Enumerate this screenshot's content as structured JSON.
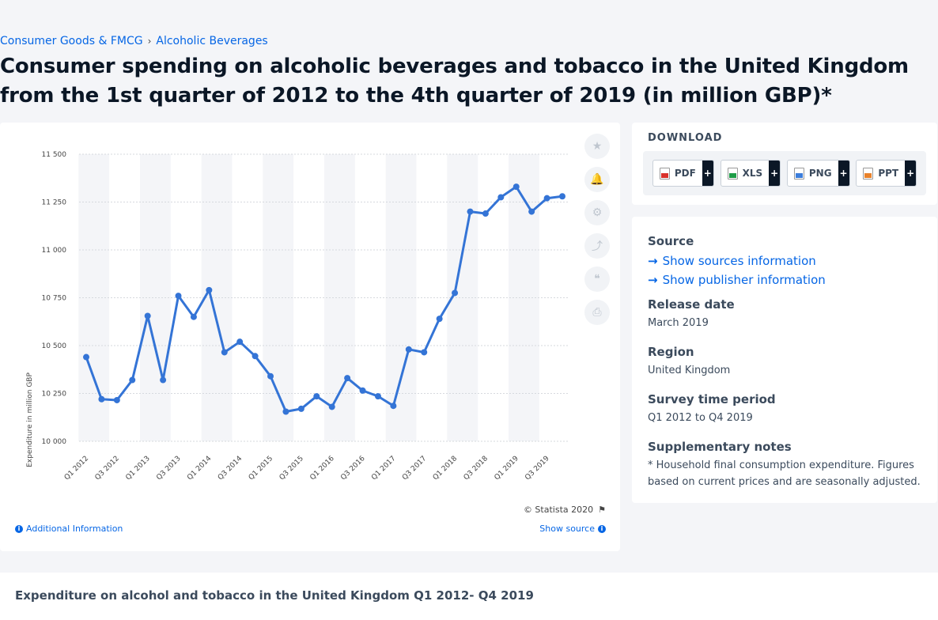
{
  "breadcrumb": {
    "item1": "Consumer Goods & FMCG",
    "item2": "Alcoholic Beverages",
    "sep": "›"
  },
  "page_title": "Consumer spending on alcoholic beverages and tobacco in the United Kingdom from the 1st quarter of 2012 to the 4th quarter of 2019 (in million GBP)*",
  "chart_footer": {
    "copyright": "© Statista 2020",
    "additional_info": "Additional Information",
    "show_source": "Show source"
  },
  "download": {
    "title": "DOWNLOAD",
    "buttons": [
      {
        "label": "PDF",
        "icon": "pdf-file-icon"
      },
      {
        "label": "XLS",
        "icon": "xls-file-icon"
      },
      {
        "label": "PNG",
        "icon": "png-file-icon"
      },
      {
        "label": "PPT",
        "icon": "ppt-file-icon"
      }
    ],
    "plus": "+"
  },
  "meta": {
    "source_h": "Source",
    "show_sources": "Show sources information",
    "show_publisher": "Show publisher information",
    "release_h": "Release date",
    "release_v": "March 2019",
    "region_h": "Region",
    "region_v": "United Kingdom",
    "survey_h": "Survey time period",
    "survey_v": "Q1 2012 to Q4 2019",
    "notes_h": "Supplementary notes",
    "notes_v": "* Household final consumption expenditure. Figures based on current prices and are seasonally adjusted."
  },
  "bottom_title": "Expenditure on alcohol and tobacco in the United Kingdom Q1 2012- Q4 2019",
  "colors": {
    "line": "#3474d6",
    "link": "#0666e5"
  },
  "chart_data": {
    "type": "line",
    "ylabel": "Expenditure in million GBP",
    "xlabel": "",
    "ylim": [
      10000,
      11500
    ],
    "yticks": [
      10000,
      10250,
      10500,
      10750,
      11000,
      11250,
      11500
    ],
    "ytick_labels": [
      "10 000",
      "10 250",
      "10 500",
      "10 750",
      "11 000",
      "11 250",
      "11 500"
    ],
    "grid": true,
    "x_tick_labels": [
      "Q1 2012",
      "Q3 2012",
      "Q1 2013",
      "Q3 2013",
      "Q1 2014",
      "Q3 2014",
      "Q1 2015",
      "Q3 2015",
      "Q1 2016",
      "Q3 2016",
      "Q1 2017",
      "Q3 2017",
      "Q1 2018",
      "Q3 2018",
      "Q1 2019",
      "Q3 2019"
    ],
    "categories": [
      "Q1 2012",
      "Q2 2012",
      "Q3 2012",
      "Q4 2012",
      "Q1 2013",
      "Q2 2013",
      "Q3 2013",
      "Q4 2013",
      "Q1 2014",
      "Q2 2014",
      "Q3 2014",
      "Q4 2014",
      "Q1 2015",
      "Q2 2015",
      "Q3 2015",
      "Q4 2015",
      "Q1 2016",
      "Q2 2016",
      "Q3 2016",
      "Q4 2016",
      "Q1 2017",
      "Q2 2017",
      "Q3 2017",
      "Q4 2017",
      "Q1 2018",
      "Q2 2018",
      "Q3 2018",
      "Q4 2018",
      "Q1 2019",
      "Q2 2019",
      "Q3 2019",
      "Q4 2019"
    ],
    "values": [
      10440,
      10220,
      10215,
      10320,
      10655,
      10320,
      10760,
      10650,
      10790,
      10465,
      10520,
      10445,
      10340,
      10155,
      10170,
      10235,
      10180,
      10330,
      10265,
      10235,
      10185,
      10480,
      10465,
      10640,
      10775,
      11200,
      11190,
      11275,
      11330,
      11200,
      11270,
      11280
    ]
  }
}
